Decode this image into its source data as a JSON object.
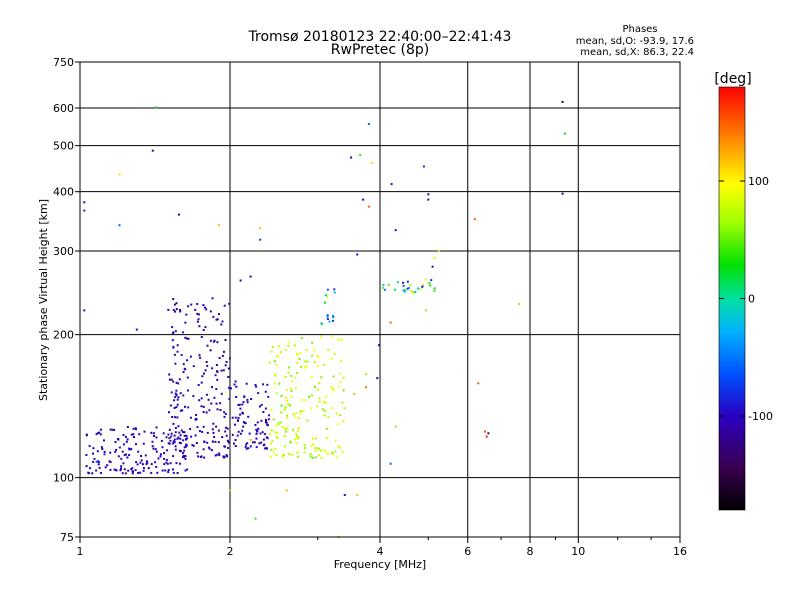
{
  "chart_data": {
    "type": "scatter",
    "title": "Tromsø 20180123 22:40:00–22:41:43",
    "subtitle": "RwPretec (8p)",
    "xlabel": "Frequency [MHz]",
    "ylabel": "Stationary phase Virtual Height [km]",
    "x_scale": "log",
    "y_scale": "log",
    "xlim": [
      1,
      16
    ],
    "ylim": [
      75,
      750
    ],
    "x_ticks": [
      1,
      2,
      4,
      6,
      8,
      10,
      16
    ],
    "x_tick_labels": [
      "1",
      "2",
      "4",
      "6",
      "8",
      "10",
      "16"
    ],
    "y_ticks": [
      75,
      100,
      200,
      300,
      400,
      500,
      600,
      750
    ],
    "y_tick_labels": [
      "75",
      "100",
      "200",
      "300",
      "400",
      "500",
      "600",
      "750"
    ],
    "grid": true,
    "phase_box": {
      "title": "Phases",
      "line_o": "mean, sd,O: -93.9, 17.6",
      "line_x": "mean, sd,X:  86.3, 22.4"
    },
    "colorbar": {
      "label": "[deg]",
      "range": [
        -180,
        180
      ],
      "ticks": [
        100,
        0,
        -100
      ],
      "tick_labels": [
        "100",
        "0",
        "-100"
      ]
    },
    "clusters": [
      {
        "x_range": [
          1.03,
          1.65
        ],
        "h_range": [
          102,
          128
        ],
        "phase_range": [
          -115,
          -95
        ],
        "count": 170
      },
      {
        "x_range": [
          1.5,
          2.0
        ],
        "h_range": [
          110,
          240
        ],
        "phase_range": [
          -120,
          -95
        ],
        "count": 230
      },
      {
        "x_range": [
          2.0,
          2.4
        ],
        "h_range": [
          115,
          160
        ],
        "phase_range": [
          -115,
          -95
        ],
        "count": 90
      },
      {
        "x_range": [
          2.4,
          3.4
        ],
        "h_range": [
          110,
          200
        ],
        "phase_range": [
          50,
          110
        ],
        "count": 190
      },
      {
        "x_range": [
          3.05,
          3.3
        ],
        "h_range": [
          210,
          260
        ],
        "phase_range": [
          -110,
          100
        ],
        "count": 15
      },
      {
        "x_range": [
          4.0,
          5.2
        ],
        "h_range": [
          245,
          262
        ],
        "phase_range": [
          -110,
          90
        ],
        "count": 30
      }
    ],
    "sparse_points": [
      [
        1.02,
        380,
        -100
      ],
      [
        1.02,
        365,
        -90
      ],
      [
        1.02,
        225,
        -95
      ],
      [
        1.2,
        435,
        110
      ],
      [
        1.2,
        340,
        -60
      ],
      [
        1.3,
        205,
        -100
      ],
      [
        1.4,
        488,
        -100
      ],
      [
        1.42,
        602,
        20
      ],
      [
        1.58,
        358,
        -100
      ],
      [
        1.9,
        340,
        120
      ],
      [
        2.3,
        335,
        120
      ],
      [
        2.3,
        317,
        -80
      ],
      [
        2.1,
        260,
        -100
      ],
      [
        2.2,
        265,
        -100
      ],
      [
        3.5,
        472,
        -110
      ],
      [
        3.65,
        478,
        40
      ],
      [
        3.8,
        555,
        -60
      ],
      [
        3.85,
        460,
        110
      ],
      [
        3.7,
        385,
        -100
      ],
      [
        3.8,
        372,
        150
      ],
      [
        3.6,
        295,
        -100
      ],
      [
        4.22,
        415,
        -100
      ],
      [
        4.3,
        332,
        -110
      ],
      [
        4.9,
        452,
        -80
      ],
      [
        5.0,
        395,
        -110
      ],
      [
        5.0,
        385,
        -120
      ],
      [
        5.25,
        300,
        110
      ],
      [
        5.15,
        290,
        80
      ],
      [
        5.1,
        278,
        -100
      ],
      [
        4.95,
        225,
        120
      ],
      [
        6.2,
        350,
        150
      ],
      [
        7.6,
        232,
        120
      ],
      [
        4.2,
        212,
        150
      ],
      [
        3.98,
        190,
        -100
      ],
      [
        3.75,
        165,
        60
      ],
      [
        3.95,
        162,
        -100
      ],
      [
        4.3,
        128,
        60
      ],
      [
        4.2,
        107,
        -60
      ],
      [
        6.3,
        158,
        150
      ],
      [
        6.5,
        125,
        160
      ],
      [
        6.55,
        122,
        170
      ],
      [
        6.6,
        124,
        -150
      ],
      [
        9.3,
        618,
        -150
      ],
      [
        9.4,
        530,
        30
      ],
      [
        9.3,
        396,
        -120
      ],
      [
        2.25,
        82,
        40
      ],
      [
        2.0,
        94,
        120
      ],
      [
        2.6,
        94,
        120
      ],
      [
        3.4,
        92,
        -100
      ],
      [
        3.6,
        92,
        120
      ],
      [
        3.3,
        75,
        60
      ],
      [
        2.2,
        120,
        120
      ],
      [
        3.2,
        140,
        90
      ],
      [
        2.5,
        180,
        100
      ],
      [
        2.7,
        190,
        80
      ],
      [
        3.55,
        150,
        120
      ],
      [
        3.75,
        155,
        140
      ],
      [
        1.08,
        108,
        -60
      ],
      [
        1.12,
        112,
        -80
      ]
    ]
  }
}
